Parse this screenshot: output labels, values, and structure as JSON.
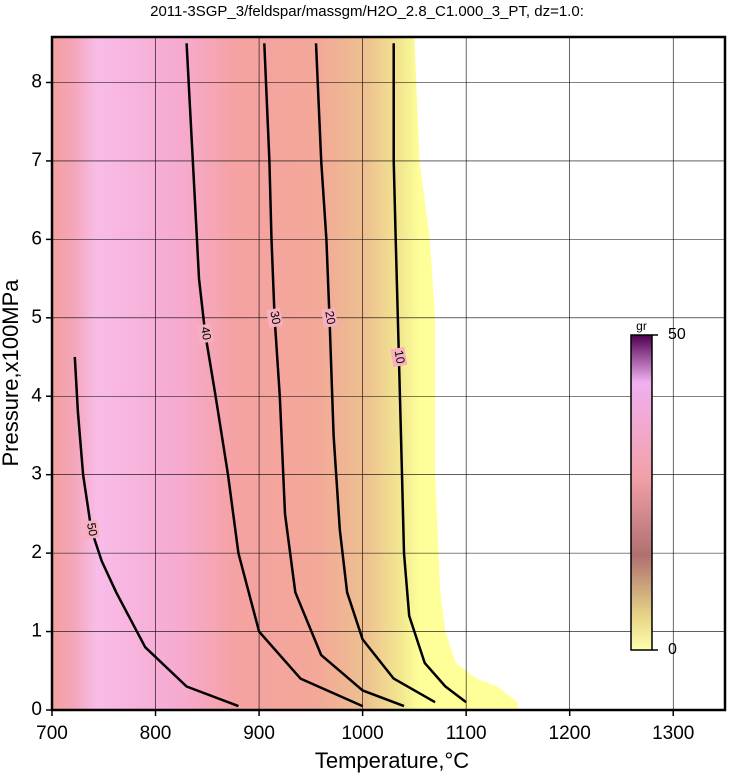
{
  "chart_data": {
    "type": "contour",
    "title": "2011-3SGP_3/feldspar/massgm/H2O_2.8_C1.000_3_PT, dz=1.0:",
    "x_label": "Temperature,°C",
    "y_label": "Pressure,x100MPa",
    "xlim": [
      700,
      1350
    ],
    "ylim": [
      0,
      8.58
    ],
    "xticks": [
      700,
      800,
      900,
      1000,
      1100,
      1200,
      1300
    ],
    "yticks": [
      0,
      1,
      2,
      3,
      4,
      5,
      6,
      7,
      8
    ],
    "grid": true,
    "field": {
      "x": [
        700,
        1050,
        1055,
        1065,
        1070,
        1070,
        1075,
        1080,
        1090,
        1110,
        1130,
        1150,
        1150,
        700
      ],
      "y": [
        8.58,
        8.58,
        7,
        6,
        5,
        3,
        1.5,
        1,
        0.6,
        0.4,
        0.3,
        0.1,
        0,
        0
      ]
    },
    "contours": [
      {
        "level": 10,
        "x": [
          1030,
          1030,
          1032,
          1035,
          1038,
          1040,
          1045,
          1060,
          1080,
          1100
        ],
        "y": [
          8.5,
          7,
          6,
          4.5,
          3,
          2,
          1.2,
          0.6,
          0.3,
          0.1
        ]
      },
      {
        "level": 20,
        "x": [
          955,
          960,
          965,
          968,
          972,
          978,
          985,
          1000,
          1030,
          1070
        ],
        "y": [
          8.5,
          7,
          6,
          5,
          3.5,
          2.3,
          1.5,
          0.9,
          0.4,
          0.1
        ]
      },
      {
        "level": 30,
        "x": [
          905,
          910,
          912,
          915,
          920,
          925,
          935,
          960,
          1000,
          1040
        ],
        "y": [
          8.5,
          7,
          6,
          5,
          4,
          2.5,
          1.5,
          0.7,
          0.25,
          0.05
        ]
      },
      {
        "level": 40,
        "x": [
          830,
          838,
          842,
          848,
          858,
          870,
          880,
          900,
          940,
          1000
        ],
        "y": [
          8.5,
          6.5,
          5.5,
          4.8,
          4,
          3,
          2,
          1,
          0.4,
          0.05
        ]
      },
      {
        "level": 50,
        "x": [
          722,
          725,
          730,
          738,
          748,
          762,
          790,
          830,
          880
        ],
        "y": [
          4.5,
          3.8,
          3,
          2.3,
          1.9,
          1.5,
          0.8,
          0.3,
          0.05
        ]
      }
    ],
    "colorbar": {
      "label": "gr",
      "lim": [
        0,
        50
      ],
      "ticks": [
        0,
        50
      ]
    }
  }
}
